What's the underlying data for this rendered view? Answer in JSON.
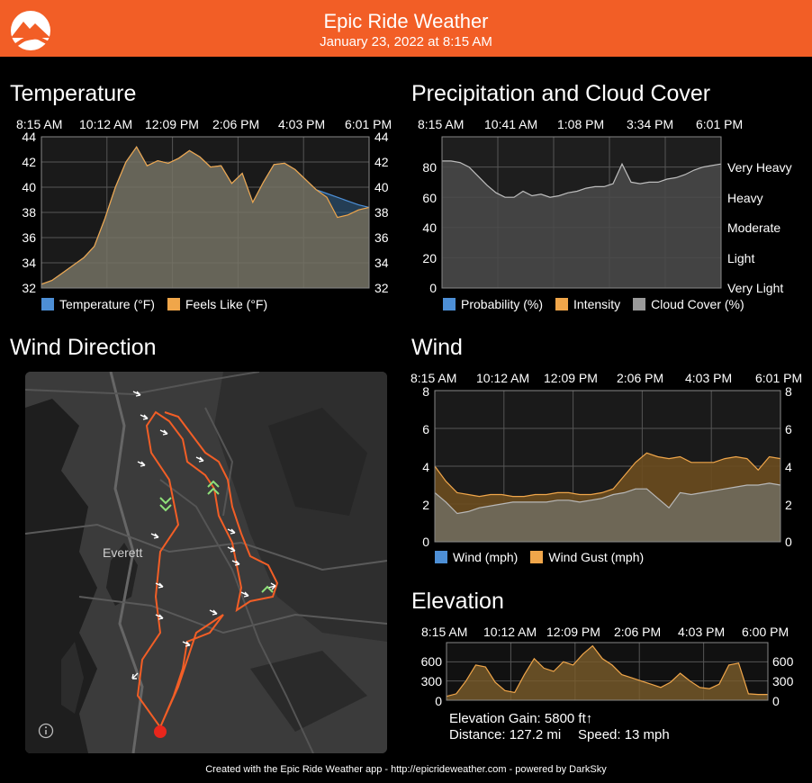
{
  "header": {
    "title": "Epic Ride Weather",
    "subtitle": "January 23, 2022 at 8:15 AM"
  },
  "temperature": {
    "title": "Temperature",
    "ticks": [
      "8:15 AM",
      "10:12 AM",
      "12:09 PM",
      "2:06 PM",
      "4:03 PM",
      "6:01 PM"
    ],
    "yticks": [
      "44",
      "42",
      "40",
      "38",
      "36",
      "34",
      "32"
    ],
    "legend": [
      {
        "label": "Temperature (°F)",
        "color": "#4d8fd6"
      },
      {
        "label": "Feels Like (°F)",
        "color": "#f0a64a"
      }
    ]
  },
  "precip": {
    "title": "Precipitation and Cloud Cover",
    "ticks": [
      "8:15 AM",
      "10:41 AM",
      "1:08 PM",
      "3:34 PM",
      "6:01 PM"
    ],
    "yticks": [
      "80",
      "60",
      "40",
      "20",
      "0"
    ],
    "yticks_right": [
      "Very Heavy",
      "Heavy",
      "Moderate",
      "Light",
      "Very Light"
    ],
    "legend": [
      {
        "label": "Probability (%)",
        "color": "#4d8fd6"
      },
      {
        "label": "Intensity",
        "color": "#f0a64a"
      },
      {
        "label": "Cloud Cover (%)",
        "color": "#9a9a9a"
      }
    ]
  },
  "wind_dir": {
    "title": "Wind Direction",
    "city": "Everett"
  },
  "wind": {
    "title": "Wind",
    "ticks": [
      "8:15 AM",
      "10:12 AM",
      "12:09 PM",
      "2:06 PM",
      "4:03 PM",
      "6:01 PM"
    ],
    "yticks": [
      "8",
      "6",
      "4",
      "2",
      "0"
    ],
    "legend": [
      {
        "label": "Wind (mph)",
        "color": "#4d8fd6"
      },
      {
        "label": "Wind Gust (mph)",
        "color": "#f0a64a"
      }
    ]
  },
  "elevation": {
    "title": "Elevation",
    "ticks": [
      "8:15 AM",
      "10:12 AM",
      "12:09 PM",
      "2:06 PM",
      "4:03 PM",
      "6:00 PM"
    ],
    "yticks": [
      "600",
      "300",
      "0"
    ],
    "gain": "Elevation Gain: 5800 ft↑",
    "distance": "Distance: 127.2 mi",
    "speed": "Speed: 13 mph"
  },
  "footer": "Created with the Epic Ride Weather app - http://epicrideweather.com - powered by DarkSky",
  "chart_data": [
    {
      "type": "area",
      "title": "Temperature",
      "ylim": [
        32,
        44
      ],
      "x_range": [
        "8:15 AM",
        "6:01 PM"
      ],
      "series": [
        {
          "name": "Temperature (°F)",
          "color": "#4d8fd6",
          "values": [
            32.3,
            32.6,
            33.2,
            33.8,
            34.4,
            35.3,
            37.5,
            40,
            42,
            43.2,
            41.7,
            42.1,
            41.9,
            42.3,
            42.9,
            42.4,
            41.6,
            41.7,
            40.3,
            41.1,
            38.8,
            40.4,
            41.8,
            41.9,
            41.4,
            40.6,
            39.8,
            39.5,
            39.2,
            38.9,
            38.6,
            38.4
          ]
        },
        {
          "name": "Feels Like (°F)",
          "color": "#f0a64a",
          "values": [
            32.3,
            32.6,
            33.2,
            33.8,
            34.4,
            35.3,
            37.5,
            40,
            42,
            43.2,
            41.7,
            42.1,
            41.9,
            42.3,
            42.9,
            42.4,
            41.6,
            41.7,
            40.3,
            41.1,
            38.8,
            40.4,
            41.8,
            41.9,
            41.4,
            40.6,
            39.8,
            39.2,
            37.6,
            37.8,
            38.2,
            38.4
          ]
        }
      ]
    },
    {
      "type": "area",
      "title": "Precipitation and Cloud Cover",
      "ylim": [
        0,
        100
      ],
      "x_range": [
        "8:15 AM",
        "6:01 PM"
      ],
      "series": [
        {
          "name": "Cloud Cover (%)",
          "color": "#9a9a9a",
          "values": [
            84,
            84,
            83,
            80,
            74,
            68,
            63,
            60,
            60,
            64,
            61,
            62,
            60,
            61,
            63,
            64,
            66,
            67,
            67,
            69,
            82,
            70,
            69,
            70,
            70,
            72,
            73,
            75,
            78,
            80,
            81,
            82
          ]
        }
      ]
    },
    {
      "type": "area",
      "title": "Wind",
      "ylim": [
        0,
        8
      ],
      "x_range": [
        "8:15 AM",
        "6:01 PM"
      ],
      "series": [
        {
          "name": "Wind Gust (mph)",
          "color": "#f0a64a",
          "values": [
            4,
            3.2,
            2.6,
            2.5,
            2.4,
            2.5,
            2.5,
            2.4,
            2.4,
            2.5,
            2.5,
            2.6,
            2.6,
            2.5,
            2.5,
            2.6,
            2.8,
            3.5,
            4.2,
            4.7,
            4.5,
            4.4,
            4.5,
            4.2,
            4.2,
            4.2,
            4.4,
            4.5,
            4.4,
            3.8,
            4.5,
            4.4
          ]
        },
        {
          "name": "Wind (mph)",
          "color": "#4d8fd6",
          "values": [
            2.6,
            2.1,
            1.5,
            1.6,
            1.8,
            1.9,
            2,
            2.1,
            2.1,
            2.1,
            2.1,
            2.2,
            2.2,
            2.1,
            2.2,
            2.3,
            2.5,
            2.6,
            2.8,
            2.8,
            2.3,
            1.8,
            2.6,
            2.5,
            2.6,
            2.7,
            2.8,
            2.9,
            3,
            3,
            3.1,
            3
          ]
        }
      ]
    },
    {
      "type": "area",
      "title": "Elevation",
      "ylim": [
        0,
        900
      ],
      "x_range": [
        "8:15 AM",
        "6:00 PM"
      ],
      "series": [
        {
          "name": "Elevation",
          "color": "#f0a64a",
          "values": [
            60,
            100,
            300,
            550,
            520,
            280,
            150,
            120,
            400,
            650,
            500,
            450,
            600,
            550,
            720,
            850,
            650,
            550,
            400,
            350,
            300,
            250,
            200,
            280,
            420,
            300,
            200,
            180,
            250,
            550,
            580,
            100,
            90,
            90
          ]
        }
      ]
    }
  ]
}
